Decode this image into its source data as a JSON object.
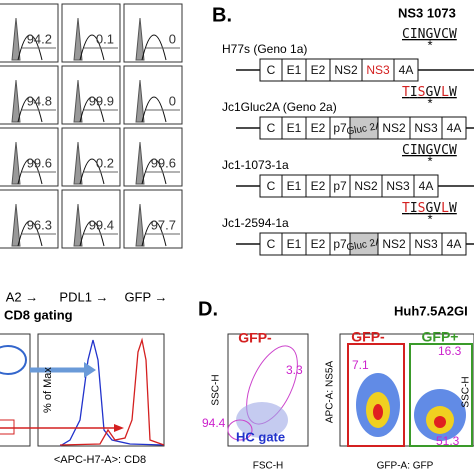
{
  "panel_a": {
    "values": [
      [
        "94.2",
        "0.1",
        "0"
      ],
      [
        "94.8",
        "99.9",
        "0"
      ],
      [
        "99.6",
        "0.2",
        "99.6"
      ],
      [
        "96.3",
        "99.4",
        "97.7"
      ]
    ],
    "axis_labels": [
      "A2 →",
      "PDL1 →",
      "GFP →"
    ]
  },
  "panel_b": {
    "label": "B.",
    "title": "NS3 1073",
    "constructs": [
      {
        "name": "H77s (Geno 1a)",
        "marker": "*",
        "sequence": [
          {
            "text": "CINGVCW",
            "color": "#111"
          }
        ],
        "genes": [
          {
            "label": "C"
          },
          {
            "label": "E1"
          },
          {
            "label": "E2"
          },
          {
            "label": "NS2"
          },
          {
            "label": "NS3",
            "color": "#d42020"
          },
          {
            "label": "4A"
          }
        ]
      },
      {
        "name": "Jc1Gluc2A (Geno 2a)",
        "marker": "*",
        "sequence": [
          {
            "text": "T",
            "color": "#d42020"
          },
          {
            "text": "I",
            "color": "#111"
          },
          {
            "text": "S",
            "color": "#d42020"
          },
          {
            "text": "GV",
            "color": "#111"
          },
          {
            "text": "L",
            "color": "#d42020"
          },
          {
            "text": "W",
            "color": "#111"
          }
        ],
        "genes": [
          {
            "label": "C"
          },
          {
            "label": "E1"
          },
          {
            "label": "E2"
          },
          {
            "label": "p7"
          },
          {
            "label": "Gluc 2A",
            "fill": "#c8c8c8"
          },
          {
            "label": "NS2"
          },
          {
            "label": "NS3"
          },
          {
            "label": "4A"
          }
        ]
      },
      {
        "name": "Jc1-1073-1a",
        "marker": "*",
        "sequence": [
          {
            "text": "CINGVCW",
            "color": "#111"
          }
        ],
        "genes": [
          {
            "label": "C"
          },
          {
            "label": "E1"
          },
          {
            "label": "E2"
          },
          {
            "label": "p7"
          },
          {
            "label": "NS2"
          },
          {
            "label": "NS3"
          },
          {
            "label": "4A"
          }
        ]
      },
      {
        "name": "Jc1-2594-1a",
        "marker": "*",
        "sequence": [
          {
            "text": "T",
            "color": "#d42020"
          },
          {
            "text": "I",
            "color": "#111"
          },
          {
            "text": "S",
            "color": "#d42020"
          },
          {
            "text": "GV",
            "color": "#111"
          },
          {
            "text": "L",
            "color": "#d42020"
          },
          {
            "text": "W",
            "color": "#111"
          }
        ],
        "genes": [
          {
            "label": "C"
          },
          {
            "label": "E1"
          },
          {
            "label": "E2"
          },
          {
            "label": "p7"
          },
          {
            "label": "Gluc 2A",
            "fill": "#c8c8c8"
          },
          {
            "label": "NS2"
          },
          {
            "label": "NS3"
          },
          {
            "label": "4A"
          }
        ]
      }
    ]
  },
  "panel_c": {
    "title": "CD8 gating",
    "y_label": "% of Max",
    "x_label": "<APC-H7-A>: CD8"
  },
  "panel_d": {
    "label": "D.",
    "title": "Huh7.5A2GI",
    "plot1": {
      "gate1": "GFP-",
      "value1": "3.3",
      "value2": "94.4",
      "gate2": "HC gate",
      "y_label": "SSC-H",
      "x_label": "FSC-H"
    },
    "plot2": {
      "gate1": "GFP-",
      "gate2": "GFP+",
      "value1": "16.3",
      "value2": "7.1",
      "value3": "51.3",
      "y_label": "APC-A: NS5A",
      "x_label": "GFP-A: GFP",
      "y2_label": "SSC-H"
    }
  }
}
